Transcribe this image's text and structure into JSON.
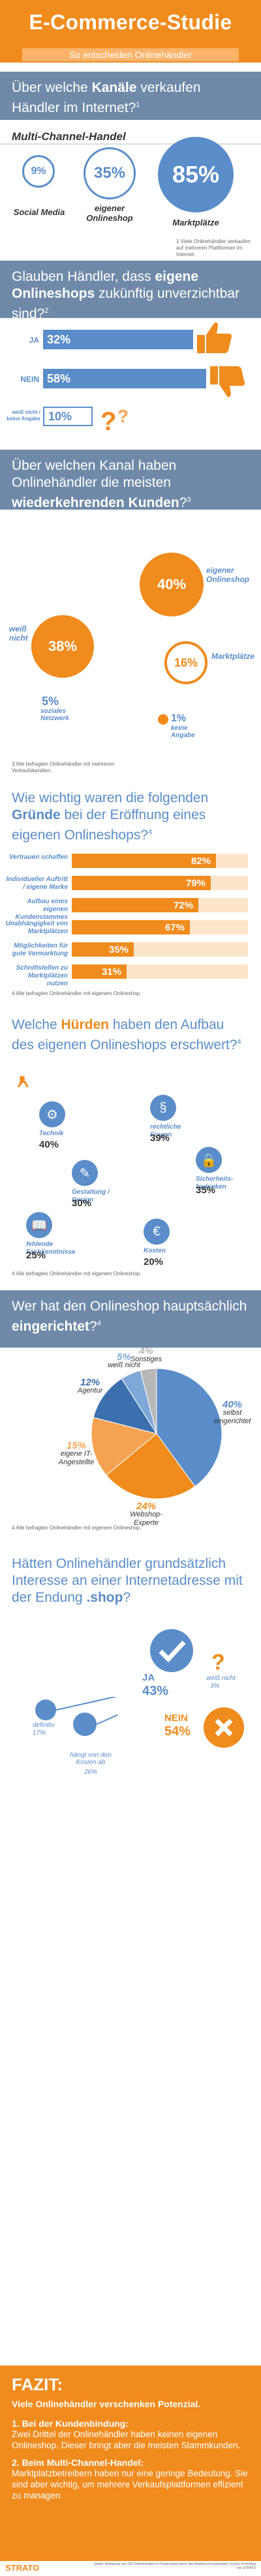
{
  "header": {
    "title": "E-Commerce-Studie",
    "subtitle": "So entscheiden Onlinehändler"
  },
  "s1": {
    "q_pre": "Über welche ",
    "q_bold": "Kanäle",
    "q_post": " verkaufen Händler im Internet?",
    "q_sup": "1",
    "heading": "Multi-Channel-Handel",
    "social": {
      "value": "9%",
      "label": "Social Media"
    },
    "shop": {
      "value": "35%",
      "label": "eigener Onlineshop"
    },
    "market": {
      "value": "85%",
      "label": "Marktplätze"
    },
    "footnote": "1 Viele Onlinehändler verkaufen auf mehreren Plattformen im Internet."
  },
  "s2": {
    "q_pre": "Glauben Händler, dass ",
    "q_bold": "eigene Onlineshops",
    "q_post": " zukünftig unverzichtbar sind?",
    "q_sup": "2",
    "rows": [
      {
        "label": "JA",
        "value": "32%",
        "pct": 32
      },
      {
        "label": "NEIN",
        "value": "58%",
        "pct": 58
      },
      {
        "label": "weiß nicht / keine Angabe",
        "value": "10%",
        "pct": 10
      }
    ]
  },
  "s3": {
    "q_pre": "Über welchen Kanal haben Onlinehändler die meisten ",
    "q_bold": "wiederkehrenden Kunden",
    "q_post": "?",
    "q_sup": "3",
    "shop": {
      "value": "40%",
      "label": "eigener Onlineshop"
    },
    "unknown": {
      "value": "38%",
      "label": "weiß nicht"
    },
    "market": {
      "value": "16%",
      "label": "Marktplätze"
    },
    "social": {
      "value": "5%",
      "label": "soziales Netzwerk"
    },
    "none": {
      "value": "1%",
      "label": "keine Angabe"
    },
    "footnote": "3 Alle befragten Onlinehändler mit mehreren Verkaufskanälen."
  },
  "s4": {
    "q_pre": "Wie wichtig waren die folgenden ",
    "q_bold": "Gründe",
    "q_post": " bei der Eröffnung eines eigenen Onlineshops?",
    "q_sup": "4",
    "rows": [
      {
        "label": "Vertrauen schaffen",
        "value": "82%",
        "pct": 82
      },
      {
        "label": "Individueller Auftritt / eigene Marke",
        "value": "79%",
        "pct": 79
      },
      {
        "label": "Aufbau eines eigenen Kundenstammes",
        "value": "72%",
        "pct": 72
      },
      {
        "label": "Unabhängigkeit von Marktplätzen",
        "value": "67%",
        "pct": 67
      },
      {
        "label": "Möglichkeiten für gute Vermarktung",
        "value": "35%",
        "pct": 35
      },
      {
        "label": "Schnittstellen zu Marktplätzen nutzen",
        "value": "31%",
        "pct": 31
      }
    ],
    "footnote": "4 Alle befragten Onlinehändler mit eigenem Onlineshop."
  },
  "s5": {
    "q_pre": "Welche ",
    "q_bold": "Hürden",
    "q_post": " haben den Aufbau des eigenen Onlineshops erschwert?",
    "q_sup": "4",
    "items": [
      {
        "name": "Technik",
        "value": "40%",
        "icon": "gear-icon",
        "glyph": "⚙"
      },
      {
        "name": "rechtliche Fragen",
        "value": "39%",
        "icon": "law-icon",
        "glyph": "§"
      },
      {
        "name": "Sicherheits-bedenken",
        "value": "35%",
        "icon": "lock-icon",
        "glyph": "🔒"
      },
      {
        "name": "Gestaltung / Design",
        "value": "30%",
        "icon": "design-icon",
        "glyph": "✎"
      },
      {
        "name": "fehlende Fachkenntnisse",
        "value": "25%",
        "icon": "book-icon",
        "glyph": "📖"
      },
      {
        "name": "Kosten",
        "value": "20%",
        "icon": "money-icon",
        "glyph": "€"
      }
    ],
    "footnote": "4 Alle befragten Onlinehändler mit eigenem Onlineshop."
  },
  "s6": {
    "q_pre": "Wer hat den Onlineshop hauptsächlich ",
    "q_bold": "eingerichtet",
    "q_post": "?",
    "q_sup": "4",
    "slices": [
      {
        "value": "40%",
        "label": "selbst eingerichtet",
        "pct": 40,
        "color": "#5a8dc9"
      },
      {
        "value": "24%",
        "label": "Webshop-Experte",
        "pct": 24,
        "color": "#f08b1d"
      },
      {
        "value": "15%",
        "label": "eigene IT-Angestellte",
        "pct": 15,
        "color": "#f5a352"
      },
      {
        "value": "12%",
        "label": "Agentur",
        "pct": 12,
        "color": "#3c6fae"
      },
      {
        "value": "5%",
        "label": "weiß nicht",
        "pct": 5,
        "color": "#7fa8d8"
      },
      {
        "value": "4%",
        "label": "Sonstiges",
        "pct": 4,
        "color": "#b8b8b8"
      }
    ],
    "footnote": "4 Alle befragten Onlinehändler mit eigenem Onlineshop."
  },
  "s7": {
    "q_pre": "Hätten Onlinehändler grundsätzlich Interesse an einer Internetadresse mit der Endung ",
    "q_bold": ".shop",
    "q_post": "?",
    "q_sup": "",
    "yes": {
      "label": "JA",
      "value": "43%"
    },
    "no": {
      "label": "NEIN",
      "value": "54%"
    },
    "sub1": {
      "label": "definitiv",
      "value": "17%"
    },
    "sub2": {
      "label": "hängt von den Kosten ab",
      "value": "26%"
    },
    "sub3": {
      "label": "weiß nicht",
      "value": "3%"
    }
  },
  "fazit": {
    "title": "FAZIT:",
    "lead": "Viele Onlinehändler verschenken Potenzial.",
    "p1_title": "1. Bei der Kundenbindung:",
    "p1_text": "Zwei Drittel der Onlinehändler haben keinen eigenen Onlineshop. Dieser bringt aber die meisten Stammkunden.",
    "p2_title": "2. Beim Multi-Channel-Handel:",
    "p2_text": "Marktplatzbetreibern haben nur eine geringe Bedeutung. Sie sind aber wichtig, um mehrere Verkaufsplattformen effizient zu managen."
  },
  "footer": {
    "logo": "STRATO",
    "source": "Quelle: Befragung von 300 Onlinehändlern in Deutschland durch das Marktforschungsinstitut YouGov im Auftrag von STRATO"
  }
}
